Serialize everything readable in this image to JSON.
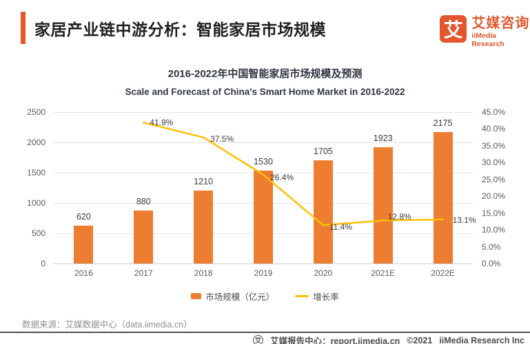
{
  "colors": {
    "accent": "#E4572E",
    "bar": "#ED7D31",
    "line": "#FFC000"
  },
  "header": {
    "title": "家居产业链中游分析：智能家居市场规模",
    "logo": {
      "glyph": "艾",
      "name_cn": "艾媒咨询",
      "name_en": "iiMedia Research"
    }
  },
  "chart": {
    "title_cn": "2016-2022年中国智能家居市场规模及预测",
    "title_en": "Scale and Forecast of China's Smart Home Market in 2016-2022"
  },
  "chart_data": {
    "type": "bar",
    "categories": [
      "2016",
      "2017",
      "2018",
      "2019",
      "2020",
      "2021E",
      "2022E"
    ],
    "series": [
      {
        "name": "市场规模（亿元）",
        "type": "bar",
        "axis": "left",
        "color": "#ED7D31",
        "values": [
          620,
          880,
          1210,
          1530,
          1705,
          1923,
          2175
        ]
      },
      {
        "name": "增长率",
        "type": "line",
        "axis": "right",
        "color": "#FFC000",
        "values": [
          null,
          41.9,
          37.5,
          26.4,
          11.4,
          12.8,
          13.1
        ],
        "labels": [
          null,
          "41.9%",
          "37.5%",
          "26.4%",
          "11.4%",
          "12.8%",
          "13.1%"
        ]
      }
    ],
    "left_axis": {
      "min": 0,
      "max": 2500,
      "step": 500,
      "ticks": [
        "0",
        "500",
        "1000",
        "1500",
        "2000",
        "2500"
      ]
    },
    "right_axis": {
      "min": 0,
      "max": 45,
      "step": 5,
      "ticks": [
        "0.0%",
        "5.0%",
        "10.0%",
        "15.0%",
        "20.0%",
        "25.0%",
        "30.0%",
        "35.0%",
        "40.0%",
        "45.0%"
      ]
    },
    "grid": true,
    "legend_position": "bottom"
  },
  "source": "数据来源：艾媒数据中心（data.iimedia.cn）",
  "footer": {
    "icon_glyph": "艾",
    "text": "艾媒报告中心：report.iimedia.cn",
    "copyright": "©2021",
    "company": "iiMedia Research Inc"
  }
}
